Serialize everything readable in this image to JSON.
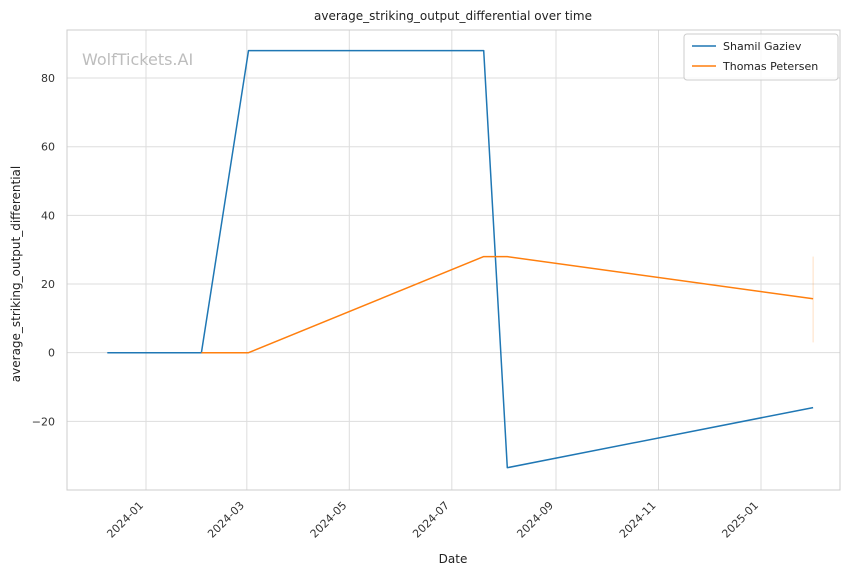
{
  "chart_data": {
    "type": "line",
    "title": "average_striking_output_differential over time",
    "xlabel": "Date",
    "ylabel": "average_striking_output_differential",
    "watermark": "WolfTickets.AI",
    "grid": true,
    "legend_position": "top-right",
    "xlim": [
      "2023-11-15",
      "2025-02-17"
    ],
    "ylim": [
      -40,
      94
    ],
    "x_ticks": [
      "2024-01-01",
      "2024-03-01",
      "2024-05-01",
      "2024-07-01",
      "2024-09-01",
      "2024-11-01",
      "2025-01-01"
    ],
    "x_tick_labels": [
      "2024-01",
      "2024-03",
      "2024-05",
      "2024-07",
      "2024-09",
      "2024-11",
      "2025-01"
    ],
    "y_ticks": [
      -20,
      0,
      20,
      40,
      60,
      80
    ],
    "y_tick_labels": [
      "−20",
      "0",
      "20",
      "40",
      "60",
      "80"
    ],
    "series": [
      {
        "name": "Shamil Gaziev",
        "color": "#1f77b4",
        "points": [
          {
            "x": "2023-12-09",
            "y": 0
          },
          {
            "x": "2024-02-03",
            "y": 0
          },
          {
            "x": "2024-03-02",
            "y": 88
          },
          {
            "x": "2024-07-20",
            "y": 88
          },
          {
            "x": "2024-08-03",
            "y": -33.5
          },
          {
            "x": "2025-02-01",
            "y": -16
          }
        ]
      },
      {
        "name": "Thomas Petersen",
        "color": "#ff7f0e",
        "points": [
          {
            "x": "2024-02-03",
            "y": 0
          },
          {
            "x": "2024-03-02",
            "y": 0
          },
          {
            "x": "2024-07-20",
            "y": 28
          },
          {
            "x": "2024-08-03",
            "y": 28
          },
          {
            "x": "2025-02-01",
            "y": 15.7
          }
        ]
      }
    ],
    "annotations": [
      {
        "type": "vertical-range",
        "x": "2025-02-01",
        "y_from": 3,
        "y_to": 28,
        "color": "#ff7f0e",
        "opacity": 0.25
      }
    ]
  }
}
